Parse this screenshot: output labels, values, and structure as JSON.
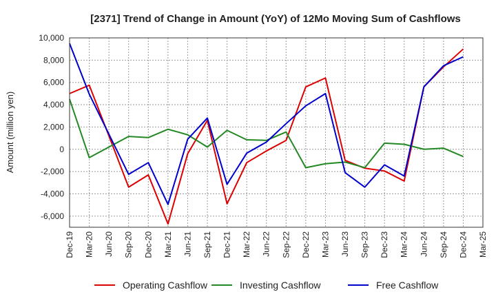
{
  "chart_data": {
    "type": "line",
    "title": "[2371]  Trend of Change in Amount (YoY) of 12Mo Moving Sum of Cashflows",
    "xlabel": "",
    "ylabel": "Amount (million yen)",
    "ylim": [
      -7000,
      10000
    ],
    "yticks": [
      -6000,
      -4000,
      -2000,
      0,
      2000,
      4000,
      6000,
      8000,
      10000
    ],
    "ytick_labels": [
      "-6,000",
      "-4,000",
      "-2,000",
      "0",
      "2,000",
      "4,000",
      "6,000",
      "8,000",
      "10,000"
    ],
    "grid": true,
    "legend_position": "bottom",
    "categories": [
      "Dec-19",
      "Mar-20",
      "Jun-20",
      "Sep-20",
      "Dec-20",
      "Mar-21",
      "Jun-21",
      "Sep-21",
      "Dec-21",
      "Mar-22",
      "Jun-22",
      "Sep-22",
      "Dec-22",
      "Mar-23",
      "Jun-23",
      "Sep-23",
      "Dec-23",
      "Mar-24",
      "Jun-24",
      "Sep-24",
      "Dec-24",
      "Mar-25"
    ],
    "series": [
      {
        "name": "Operating Cashflow",
        "color": "#dd0000",
        "values": [
          5000,
          5750,
          1200,
          -3400,
          -2300,
          -6700,
          -400,
          2600,
          -4900,
          -1200,
          -150,
          800,
          5600,
          6400,
          -1000,
          -1700,
          -1950,
          -2850,
          5600,
          7400,
          9000,
          null
        ]
      },
      {
        "name": "Investing Cashflow",
        "color": "#228822",
        "values": [
          4500,
          -750,
          200,
          1150,
          1050,
          1800,
          1300,
          200,
          1700,
          850,
          800,
          1550,
          -1650,
          -1300,
          -1150,
          -1650,
          550,
          450,
          0,
          100,
          -650,
          null
        ]
      },
      {
        "name": "Free Cashflow",
        "color": "#0000cc",
        "values": [
          9500,
          4950,
          1350,
          -2250,
          -1200,
          -4950,
          900,
          2800,
          -3150,
          -350,
          650,
          2300,
          3900,
          5000,
          -2100,
          -3400,
          -1400,
          -2400,
          5600,
          7500,
          8300,
          null
        ]
      }
    ]
  }
}
